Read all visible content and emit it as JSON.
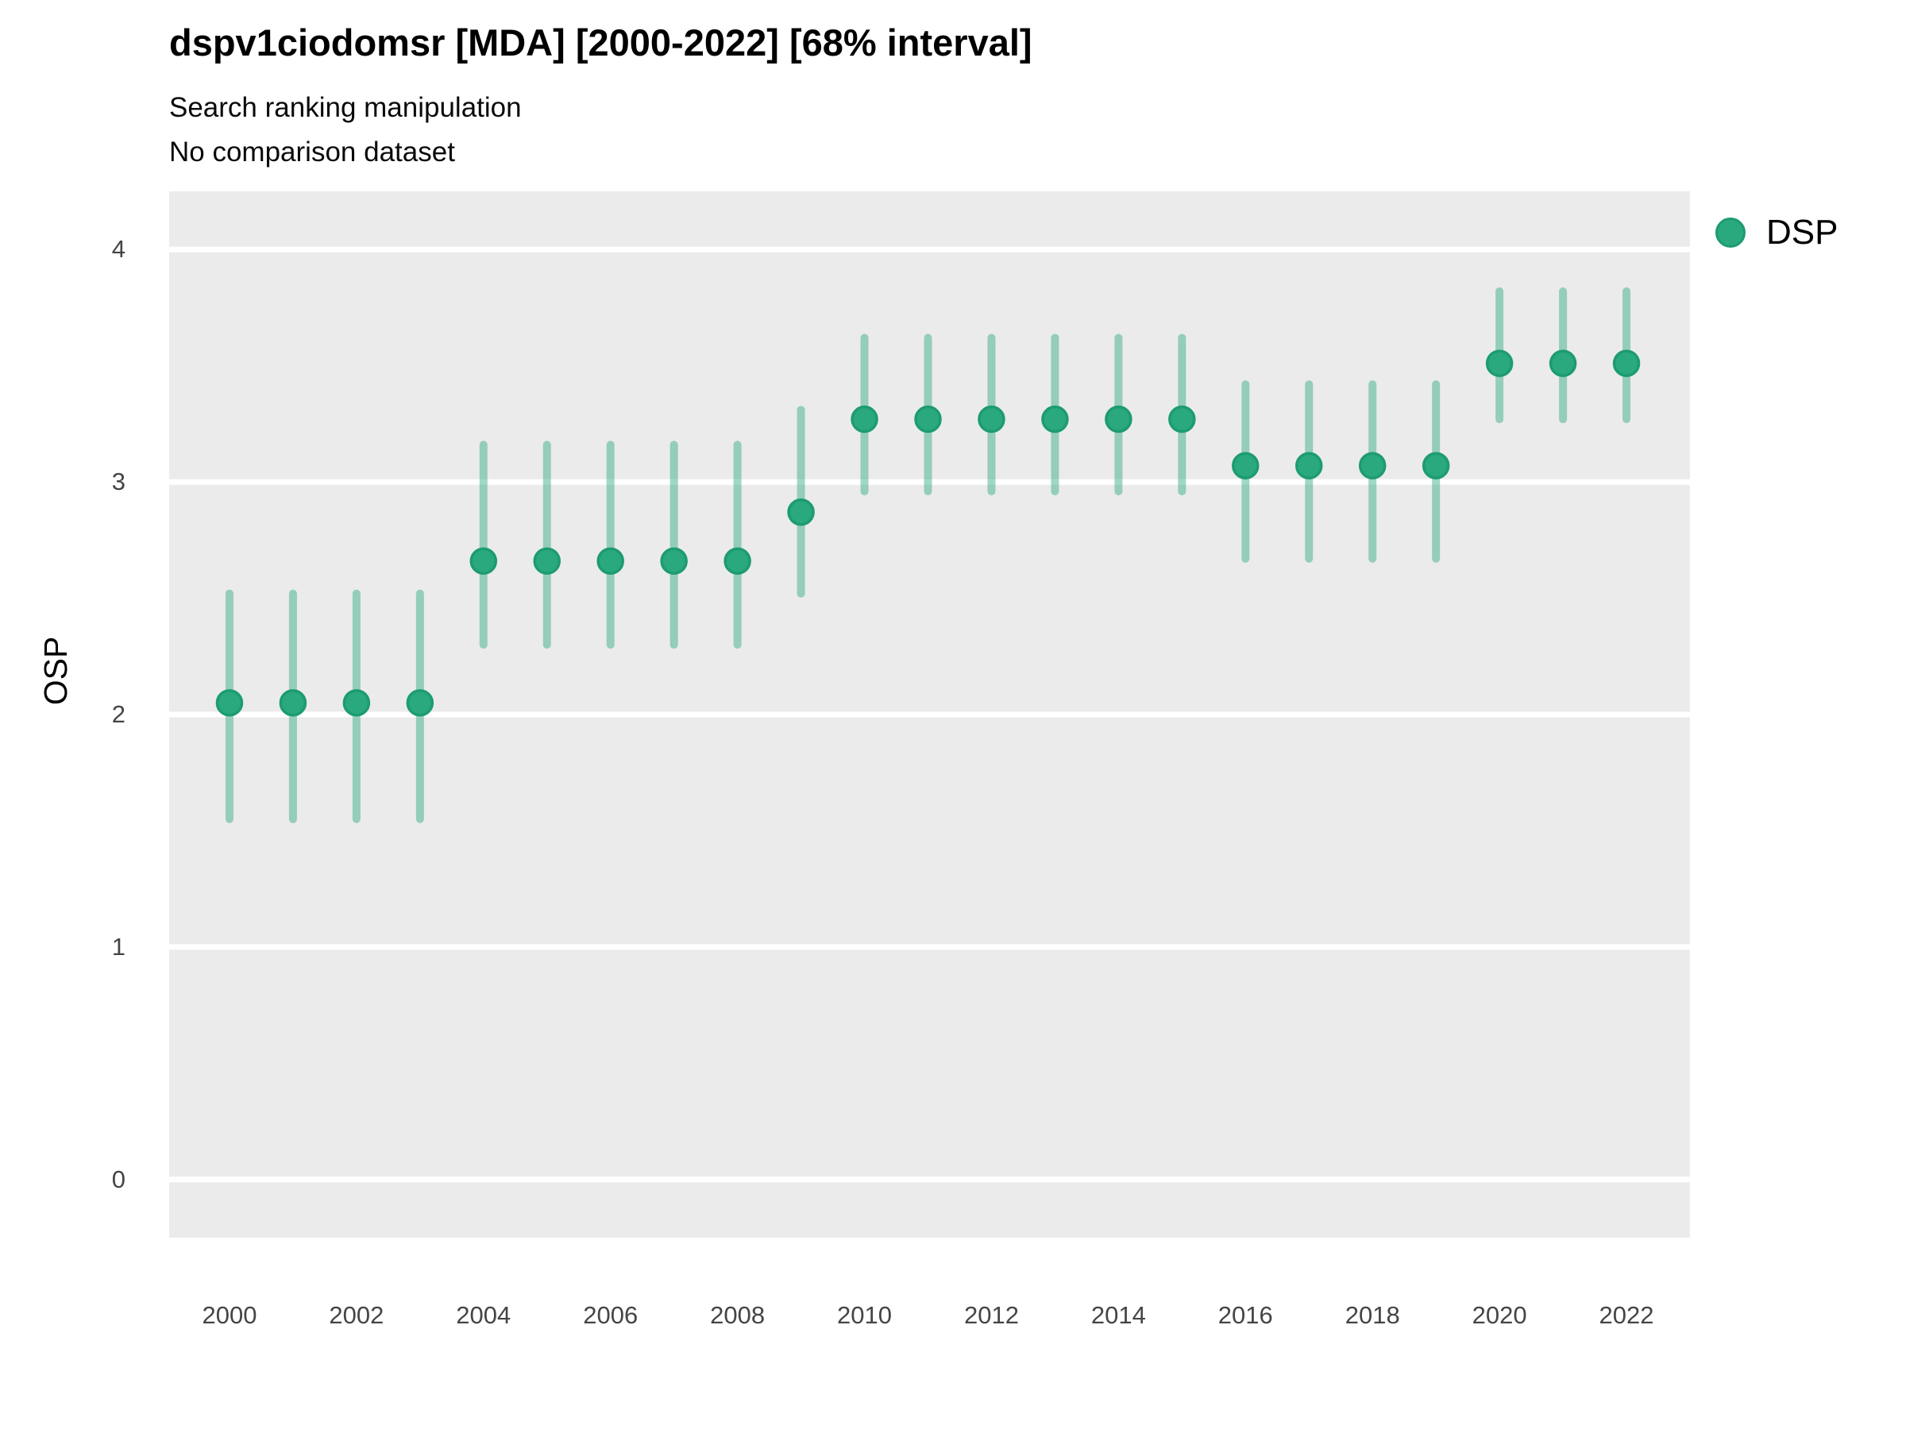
{
  "header": {
    "title": "dspv1ciodomsr [MDA] [2000-2022] [68% interval]",
    "subtitle": "Search ranking manipulation",
    "note": "No comparison dataset"
  },
  "y_axis": {
    "label": "OSP",
    "ticks": [
      0,
      1,
      2,
      3,
      4
    ]
  },
  "x_axis": {
    "ticks": [
      2000,
      2002,
      2004,
      2006,
      2008,
      2010,
      2012,
      2014,
      2016,
      2018,
      2020,
      2022
    ]
  },
  "legend": {
    "items": [
      {
        "label": "DSP",
        "color": "#2aa97f",
        "border": "#1d9b71"
      }
    ]
  },
  "colors": {
    "panel_bg": "#ebebeb",
    "gridline": "#ffffff",
    "point_fill": "#2aa97f",
    "point_border": "#1d9b71",
    "interval_line": "rgba(42,169,127,0.45)",
    "tick_text": "#454545",
    "title_text": "#000000"
  },
  "chart_data": {
    "type": "pointrange",
    "title": "dspv1ciodomsr [MDA] [2000-2022] [68% interval]",
    "subtitle": "Search ranking manipulation",
    "note": "No comparison dataset",
    "interval": "68%",
    "xlabel": "",
    "ylabel": "OSP",
    "legend_position": "right",
    "grid": "horizontal white gridlines on grey panel",
    "xlim": [
      1999.05,
      2023.0
    ],
    "ylim": [
      -0.25,
      4.25
    ],
    "x_ticks": [
      2000,
      2002,
      2004,
      2006,
      2008,
      2010,
      2012,
      2014,
      2016,
      2018,
      2020,
      2022
    ],
    "y_ticks": [
      0,
      1,
      2,
      3,
      4
    ],
    "series": [
      {
        "name": "DSP",
        "color": "#2aa97f",
        "points": [
          {
            "x": 2000,
            "y": 2.05,
            "lo": 1.55,
            "hi": 2.52
          },
          {
            "x": 2001,
            "y": 2.05,
            "lo": 1.55,
            "hi": 2.52
          },
          {
            "x": 2002,
            "y": 2.05,
            "lo": 1.55,
            "hi": 2.52
          },
          {
            "x": 2003,
            "y": 2.05,
            "lo": 1.55,
            "hi": 2.52
          },
          {
            "x": 2004,
            "y": 2.66,
            "lo": 2.3,
            "hi": 3.16
          },
          {
            "x": 2005,
            "y": 2.66,
            "lo": 2.3,
            "hi": 3.16
          },
          {
            "x": 2006,
            "y": 2.66,
            "lo": 2.3,
            "hi": 3.16
          },
          {
            "x": 2007,
            "y": 2.66,
            "lo": 2.3,
            "hi": 3.16
          },
          {
            "x": 2008,
            "y": 2.66,
            "lo": 2.3,
            "hi": 3.16
          },
          {
            "x": 2009,
            "y": 2.87,
            "lo": 2.52,
            "hi": 3.31
          },
          {
            "x": 2010,
            "y": 3.27,
            "lo": 2.96,
            "hi": 3.62
          },
          {
            "x": 2011,
            "y": 3.27,
            "lo": 2.96,
            "hi": 3.62
          },
          {
            "x": 2012,
            "y": 3.27,
            "lo": 2.96,
            "hi": 3.62
          },
          {
            "x": 2013,
            "y": 3.27,
            "lo": 2.96,
            "hi": 3.62
          },
          {
            "x": 2014,
            "y": 3.27,
            "lo": 2.96,
            "hi": 3.62
          },
          {
            "x": 2015,
            "y": 3.27,
            "lo": 2.96,
            "hi": 3.62
          },
          {
            "x": 2016,
            "y": 3.07,
            "lo": 2.67,
            "hi": 3.42
          },
          {
            "x": 2017,
            "y": 3.07,
            "lo": 2.67,
            "hi": 3.42
          },
          {
            "x": 2018,
            "y": 3.07,
            "lo": 2.67,
            "hi": 3.42
          },
          {
            "x": 2019,
            "y": 3.07,
            "lo": 2.67,
            "hi": 3.42
          },
          {
            "x": 2020,
            "y": 3.51,
            "lo": 3.27,
            "hi": 3.82
          },
          {
            "x": 2021,
            "y": 3.51,
            "lo": 3.27,
            "hi": 3.82
          },
          {
            "x": 2022,
            "y": 3.51,
            "lo": 3.27,
            "hi": 3.82
          }
        ]
      }
    ]
  }
}
